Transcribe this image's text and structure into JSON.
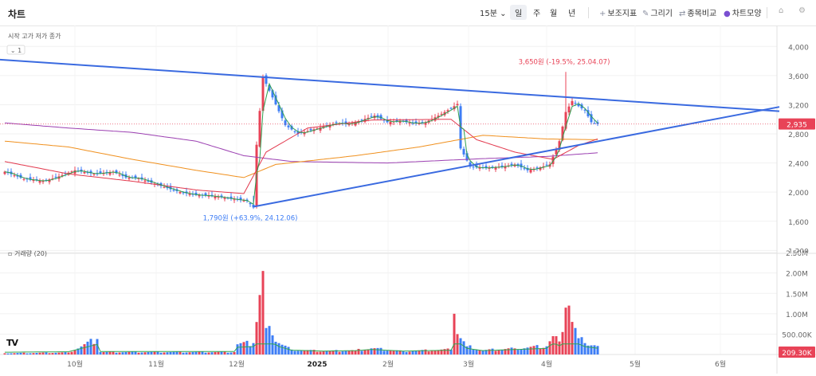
{
  "header": {
    "title": "차트",
    "interval": "15분",
    "periods": [
      "일",
      "주",
      "월",
      "년"
    ],
    "active_period": "일",
    "tools": [
      {
        "icon": "plus-icon",
        "label": "보조지표"
      },
      {
        "icon": "pencil-icon",
        "label": "그리기"
      },
      {
        "icon": "compare-icon",
        "label": "종목비교"
      },
      {
        "icon": "palette-icon",
        "label": "차트모양"
      }
    ]
  },
  "legend": {
    "ohlc_label": "시작 고가 저가 종가",
    "collapse_count": "1",
    "volume_label": "거래량 (20)"
  },
  "chart_data": {
    "type": "candlestick",
    "price_axis": {
      "ticks": [
        "4,000",
        "3,600",
        "3,200",
        "2,800",
        "2,400",
        "2,000",
        "1,600",
        "1,200"
      ],
      "range": [
        1160,
        4200
      ]
    },
    "volume_axis": {
      "ticks": [
        "2.50M",
        "2.00M",
        "1.50M",
        "1.00M",
        "500.00K"
      ],
      "range": [
        0,
        2600000
      ]
    },
    "x_axis": {
      "ticks": [
        "10월",
        "11월",
        "12월",
        "2025",
        "2월",
        "3월",
        "4월",
        "5월",
        "6월"
      ]
    },
    "last_price": {
      "label": "2,935",
      "value": 2935
    },
    "last_volume": {
      "label": "209.30K",
      "value": 209300
    },
    "annotations": [
      {
        "text": "3,650원 (-19.5%, 25.04.07)",
        "value": 3650,
        "kind": "high"
      },
      {
        "text": "1,790원 (+63.9%, 24.12.06)",
        "value": 1790,
        "kind": "low"
      }
    ],
    "colors": {
      "up": "#e84357",
      "down": "#3d7df5",
      "trendline": "#3a6ae0",
      "ma5": "#2e9e4f",
      "ma20": "#e2384d",
      "ma60": "#f0901e",
      "ma120": "#9b3fb1",
      "vol_ma": "#2fa84f"
    },
    "price_anchors": [
      [
        0,
        2280
      ],
      [
        6,
        2180
      ],
      [
        12,
        2150
      ],
      [
        16,
        2200
      ],
      [
        22,
        2300
      ],
      [
        28,
        2250
      ],
      [
        34,
        2280
      ],
      [
        38,
        2200
      ],
      [
        42,
        2190
      ],
      [
        48,
        2100
      ],
      [
        52,
        2040
      ],
      [
        56,
        1990
      ],
      [
        60,
        1960
      ],
      [
        64,
        1950
      ],
      [
        68,
        1930
      ],
      [
        72,
        1900
      ],
      [
        76,
        1880
      ],
      [
        78,
        1790
      ],
      [
        79,
        2650
      ],
      [
        81,
        3580
      ],
      [
        84,
        3300
      ],
      [
        88,
        2920
      ],
      [
        92,
        2800
      ],
      [
        96,
        2850
      ],
      [
        100,
        2900
      ],
      [
        104,
        2950
      ],
      [
        108,
        2930
      ],
      [
        112,
        2990
      ],
      [
        116,
        3050
      ],
      [
        120,
        2960
      ],
      [
        124,
        2980
      ],
      [
        128,
        2940
      ],
      [
        132,
        2960
      ],
      [
        136,
        3050
      ],
      [
        140,
        3150
      ],
      [
        142,
        3210
      ],
      [
        143,
        2600
      ],
      [
        146,
        2350
      ],
      [
        150,
        2330
      ],
      [
        156,
        2350
      ],
      [
        160,
        2380
      ],
      [
        164,
        2300
      ],
      [
        168,
        2340
      ],
      [
        171,
        2380
      ],
      [
        174,
        2700
      ],
      [
        176,
        3100
      ],
      [
        178,
        3250
      ],
      [
        180,
        3180
      ],
      [
        182,
        3120
      ],
      [
        184,
        2960
      ],
      [
        186,
        2935
      ]
    ],
    "volume_anchors": [
      [
        0,
        30000
      ],
      [
        20,
        50000
      ],
      [
        29,
        380000
      ],
      [
        30,
        60000
      ],
      [
        72,
        60000
      ],
      [
        73,
        250000
      ],
      [
        78,
        280000
      ],
      [
        81,
        2050000
      ],
      [
        82,
        650000
      ],
      [
        84,
        470000
      ],
      [
        86,
        280000
      ],
      [
        90,
        120000
      ],
      [
        100,
        80000
      ],
      [
        110,
        100000
      ],
      [
        115,
        150000
      ],
      [
        125,
        80000
      ],
      [
        140,
        120000
      ],
      [
        141,
        1000000
      ],
      [
        142,
        500000
      ],
      [
        145,
        200000
      ],
      [
        150,
        100000
      ],
      [
        160,
        150000
      ],
      [
        170,
        200000
      ],
      [
        172,
        450000
      ],
      [
        174,
        320000
      ],
      [
        176,
        1150000
      ],
      [
        177,
        1200000
      ],
      [
        178,
        800000
      ],
      [
        180,
        400000
      ],
      [
        182,
        280000
      ],
      [
        186,
        209300
      ]
    ],
    "trendlines": [
      {
        "from": [
          -2,
          3820
        ],
        "to": [
          243,
          3110
        ]
      },
      {
        "from": [
          78,
          1800
        ],
        "to": [
          243,
          3170
        ]
      }
    ],
    "moving_averages": [
      {
        "name": "ma120",
        "anchors": [
          [
            0,
            2950
          ],
          [
            20,
            2880
          ],
          [
            40,
            2820
          ],
          [
            60,
            2700
          ],
          [
            75,
            2500
          ],
          [
            90,
            2420
          ],
          [
            120,
            2400
          ],
          [
            150,
            2460
          ],
          [
            170,
            2490
          ],
          [
            186,
            2540
          ]
        ]
      },
      {
        "name": "ma60",
        "anchors": [
          [
            0,
            2700
          ],
          [
            20,
            2620
          ],
          [
            40,
            2450
          ],
          [
            60,
            2300
          ],
          [
            75,
            2200
          ],
          [
            85,
            2380
          ],
          [
            110,
            2500
          ],
          [
            130,
            2620
          ],
          [
            150,
            2780
          ],
          [
            170,
            2730
          ],
          [
            186,
            2720
          ]
        ]
      },
      {
        "name": "ma20",
        "anchors": [
          [
            0,
            2420
          ],
          [
            20,
            2250
          ],
          [
            40,
            2150
          ],
          [
            60,
            2030
          ],
          [
            75,
            1980
          ],
          [
            82,
            2550
          ],
          [
            95,
            2880
          ],
          [
            115,
            2990
          ],
          [
            140,
            3000
          ],
          [
            148,
            2720
          ],
          [
            160,
            2550
          ],
          [
            172,
            2450
          ],
          [
            180,
            2640
          ],
          [
            186,
            2730
          ]
        ]
      }
    ]
  }
}
